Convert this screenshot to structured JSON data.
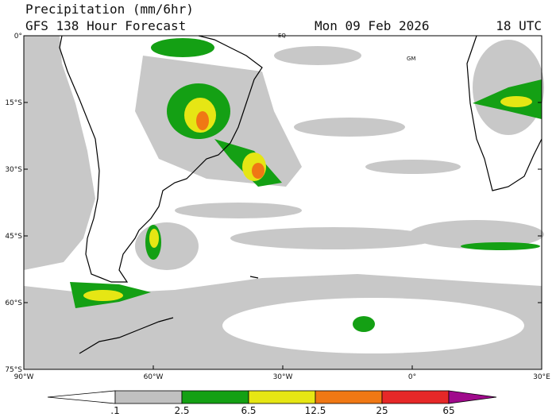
{
  "header": {
    "title": "Precipitation (mm/6hr)",
    "model": "GFS 138 Hour Forecast",
    "date": "Mon 09 Feb 2026",
    "time": "18 UTC"
  },
  "map": {
    "lat_labels": [
      "0°",
      "15°S",
      "30°S",
      "45°S",
      "60°S",
      "75°S"
    ],
    "lon_labels": [
      "90°W",
      "60°W",
      "30°W",
      "0°",
      "30°E"
    ],
    "annotations": [
      "EQ",
      "GM"
    ]
  },
  "colorbar": {
    "labels": [
      ".1",
      "2.5",
      "6.5",
      "12.5",
      "25",
      "65"
    ],
    "colors": [
      "#ffffff",
      "#c0c0c0",
      "#14a014",
      "#e6e614",
      "#f07814",
      "#e62828",
      "#a00a8c"
    ]
  }
}
